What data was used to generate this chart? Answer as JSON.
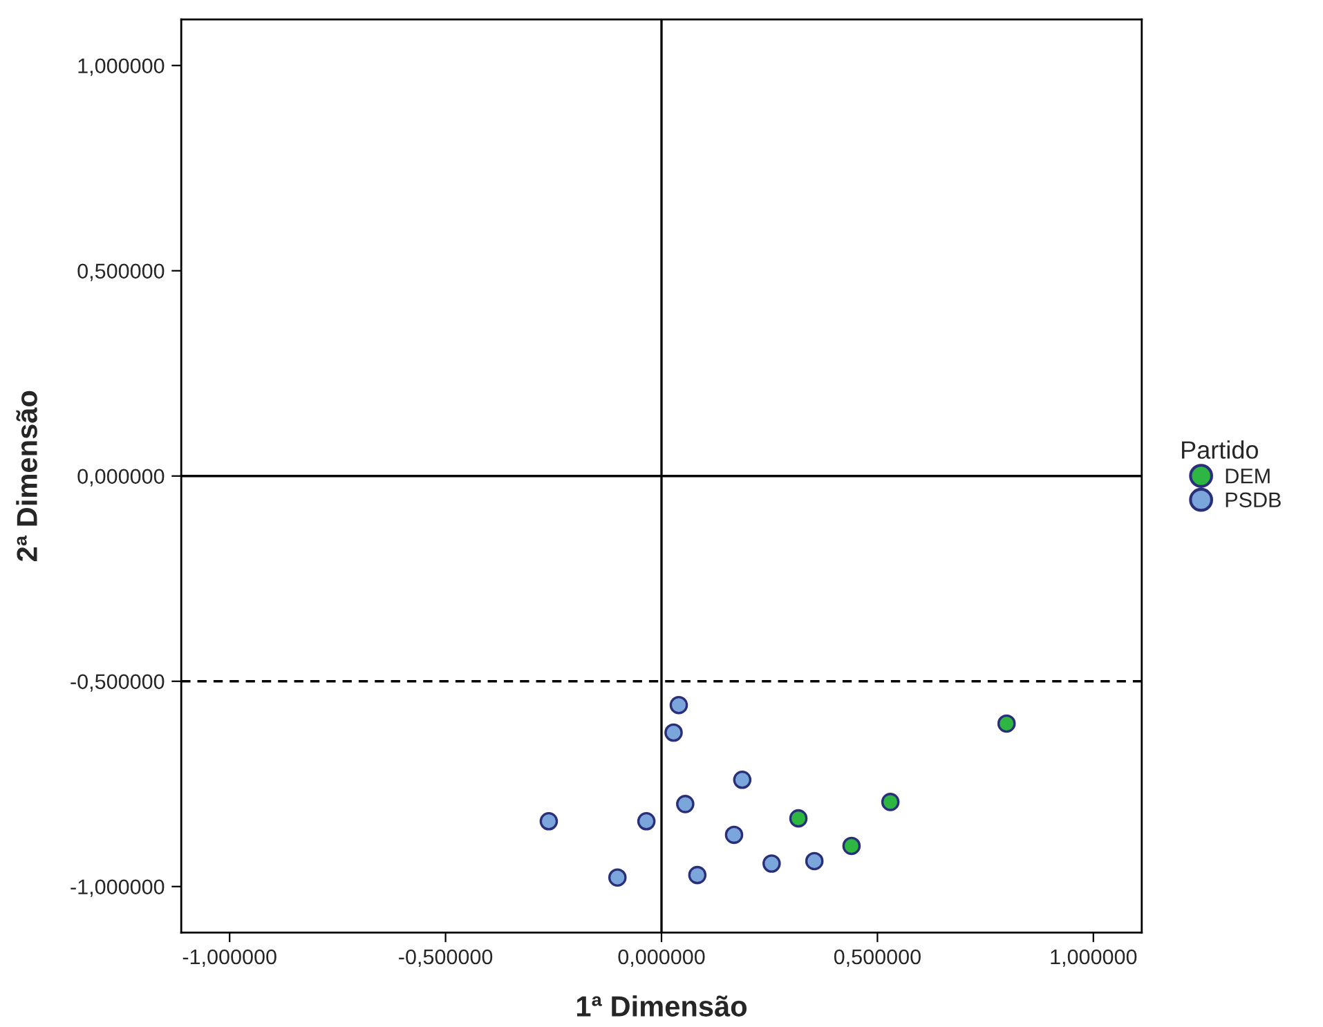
{
  "chart_data": {
    "type": "scatter",
    "xlabel": "1ª Dimensão",
    "ylabel": "2ª Dimensão",
    "legend_title": "Partido",
    "legend": "right",
    "grid": false,
    "marker": "circle",
    "xlim": [
      -1.112,
      1.112
    ],
    "ylim": [
      -1.112,
      1.112
    ],
    "xticks": [
      {
        "value": -1,
        "label": "-1,000000"
      },
      {
        "value": -0.5,
        "label": "-0,500000"
      },
      {
        "value": 0,
        "label": "0,000000"
      },
      {
        "value": 0.5,
        "label": "0,500000"
      },
      {
        "value": 1,
        "label": "1,000000"
      }
    ],
    "yticks": [
      {
        "value": -1,
        "label": "-1,000000"
      },
      {
        "value": -0.5,
        "label": "-0,500000"
      },
      {
        "value": 0,
        "label": "0,000000"
      },
      {
        "value": 0.5,
        "label": "0,500000"
      },
      {
        "value": 1,
        "label": "1,000000"
      }
    ],
    "ref_lines": [
      {
        "axis": "x",
        "value": 0,
        "line_style": "solid",
        "color": "#000000"
      },
      {
        "axis": "y",
        "value": 0,
        "line_style": "solid",
        "color": "#000000"
      },
      {
        "axis": "y",
        "value": -0.5,
        "line_style": "dashed",
        "color": "#000000"
      }
    ],
    "series": [
      {
        "name": "DEM",
        "color": "#2db742",
        "x": [
          0.317,
          0.53,
          0.44,
          0.799
        ],
        "values": [
          -0.834,
          -0.794,
          -0.901,
          -0.603
        ]
      },
      {
        "name": "PSDB",
        "color": "#7ba6dc",
        "x": [
          0.04,
          0.028,
          0.187,
          0.055,
          -0.261,
          -0.035,
          0.168,
          -0.102,
          0.083,
          0.255,
          0.354
        ],
        "values": [
          -0.558,
          -0.625,
          -0.74,
          -0.799,
          -0.841,
          -0.841,
          -0.874,
          -0.978,
          -0.972,
          -0.944,
          -0.938
        ]
      }
    ]
  }
}
